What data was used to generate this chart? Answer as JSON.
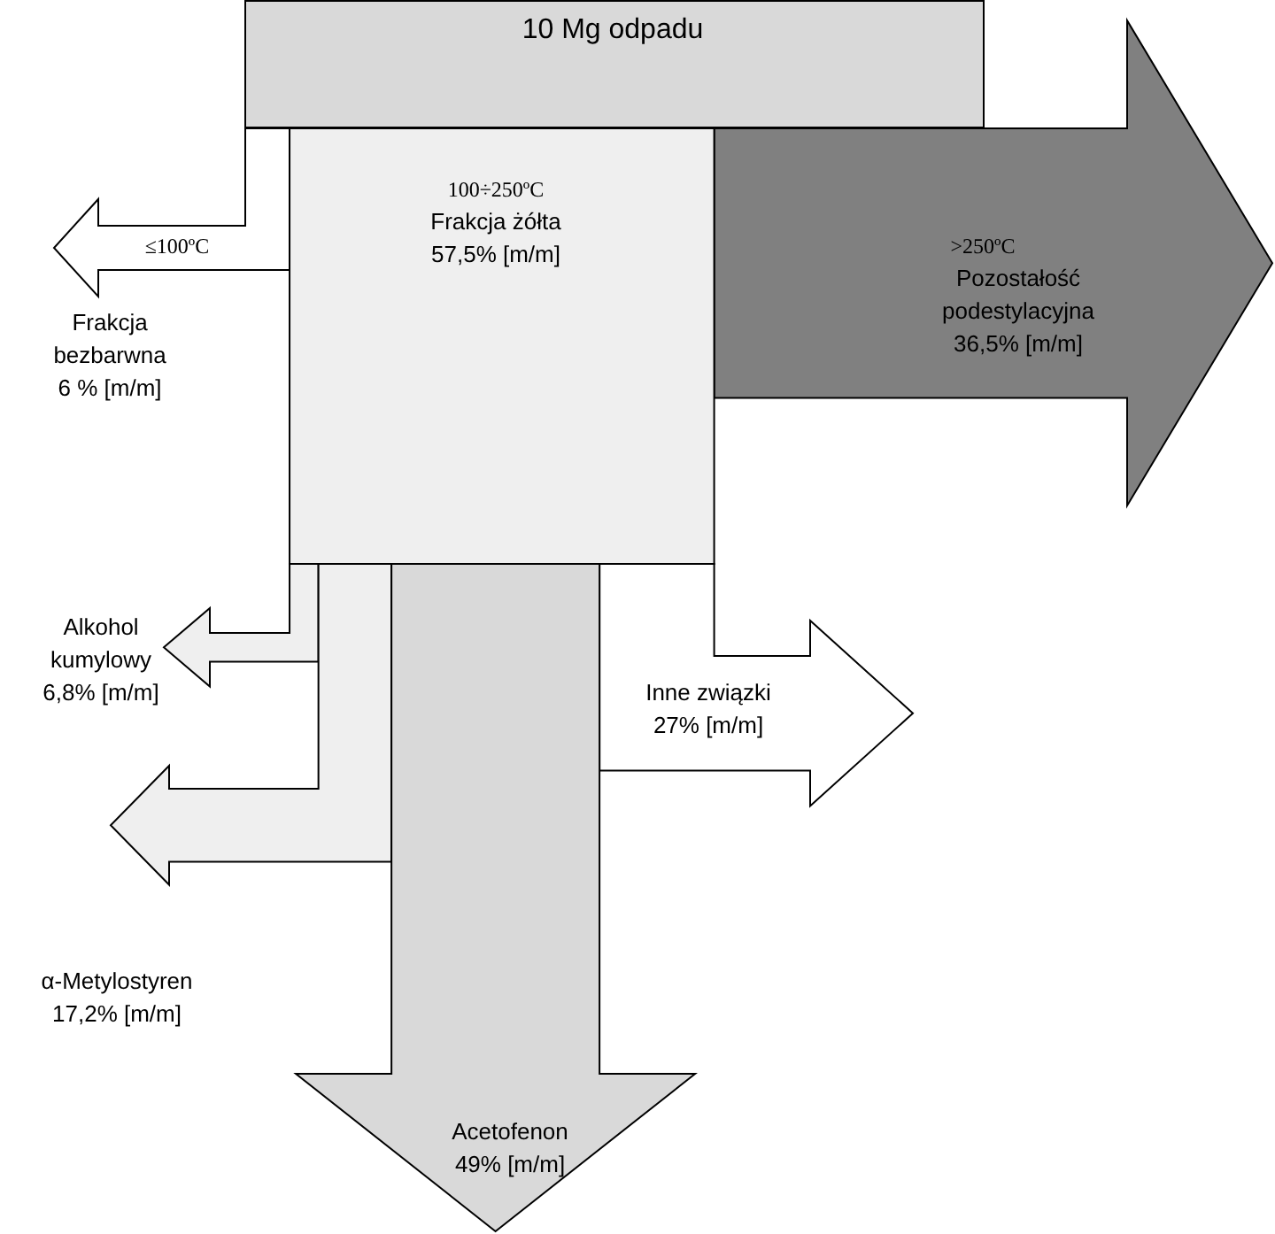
{
  "chart_data": {
    "type": "other",
    "title": "10 Mg odpadu",
    "color": "#d9d9d9",
    "categories": [
      "Frakcja bezbarwna",
      "Frakcja żółta",
      "Pozostałość podestylacyjna",
      "Alkohol kumylowy",
      "α-Metylostyren",
      "Acetofenon",
      "Inne związki"
    ],
    "values": [
      6,
      57.5,
      36.5,
      6.8,
      17.2,
      49,
      27
    ],
    "value_labels": [
      "6 % [m/m]",
      "57,5% [m/m]",
      "36,5% [m/m]",
      "6,8% [m/m]",
      "17,2% [m/m]",
      "49% [m/m]",
      "27% [m/m]"
    ],
    "colors": [
      "#ffffff",
      "#efefef",
      "#808080",
      "#efefef",
      "#efefef",
      "#d9d9d9",
      "#ffffff"
    ],
    "annotations": [
      "≤100ºC",
      "100÷250ºC",
      ">250ºC"
    ]
  }
}
